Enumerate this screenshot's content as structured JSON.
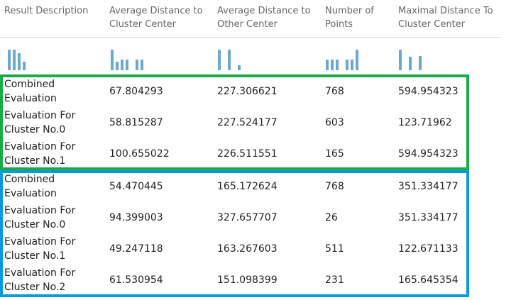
{
  "colors": {
    "group_1_outline": "#1aaa48",
    "group_2_outline": "#0a9ad8",
    "histogram_bar": "#6aa9cf"
  },
  "columns": [
    "Result Description",
    "Average Distance to\nCluster Center",
    "Average Distance to\nOther Center",
    "Number of\nPoints",
    "Maximal Distance To\nCluster Center"
  ],
  "histograms": [
    [
      0.85,
      0.85,
      0.7,
      0.35
    ],
    [
      0.85,
      0.35,
      0.45,
      0.45,
      0.0,
      0.45,
      0.45
    ],
    [
      0.85,
      0.0,
      0.85,
      0.0,
      0.2
    ],
    [
      0.45,
      0.45,
      0.45,
      0.0,
      0.45,
      0.45,
      0.85
    ],
    [
      0.85,
      0.0,
      0.55,
      0.0,
      0.6
    ]
  ],
  "groups": [
    {
      "rows": [
        {
          "description": "Combined\nEvaluation",
          "avg_dist_cluster_center": "67.804293",
          "avg_dist_other_center": "227.306621",
          "num_points": "768",
          "max_dist_cluster_center": "594.954323"
        },
        {
          "description": "Evaluation For\nCluster No.0",
          "avg_dist_cluster_center": "58.815287",
          "avg_dist_other_center": "227.524177",
          "num_points": "603",
          "max_dist_cluster_center": "123.71962"
        },
        {
          "description": "Evaluation For\nCluster No.1",
          "avg_dist_cluster_center": "100.655022",
          "avg_dist_other_center": "226.511551",
          "num_points": "165",
          "max_dist_cluster_center": "594.954323"
        }
      ]
    },
    {
      "rows": [
        {
          "description": "Combined\nEvaluation",
          "avg_dist_cluster_center": "54.470445",
          "avg_dist_other_center": "165.172624",
          "num_points": "768",
          "max_dist_cluster_center": "351.334177"
        },
        {
          "description": "Evaluation For\nCluster No.0",
          "avg_dist_cluster_center": "94.399003",
          "avg_dist_other_center": "327.657707",
          "num_points": "26",
          "max_dist_cluster_center": "351.334177"
        },
        {
          "description": "Evaluation For\nCluster No.1",
          "avg_dist_cluster_center": "49.247118",
          "avg_dist_other_center": "163.267603",
          "num_points": "511",
          "max_dist_cluster_center": "122.671133"
        },
        {
          "description": "Evaluation For\nCluster No.2",
          "avg_dist_cluster_center": "61.530954",
          "avg_dist_other_center": "151.098399",
          "num_points": "231",
          "max_dist_cluster_center": "165.645354"
        }
      ]
    }
  ]
}
